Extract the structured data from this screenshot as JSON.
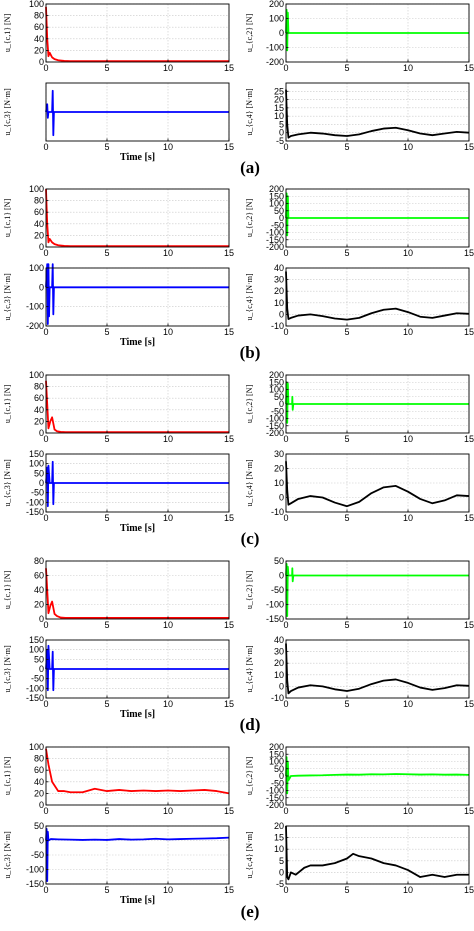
{
  "chart_data": [
    {
      "type": "line",
      "panel": "a",
      "ylabel": "u_{c,1} [N]",
      "xlim": [
        0,
        15
      ],
      "ylim": [
        0,
        100
      ],
      "yticks": [
        0,
        20,
        40,
        60,
        80,
        100
      ],
      "xticks": [
        0,
        5,
        10,
        15
      ],
      "xlabel": "",
      "color": "#ff0000",
      "series": [
        {
          "x": [
            0,
            0.1,
            0.2,
            0.3,
            0.5,
            0.7,
            1,
            1.5,
            2,
            15
          ],
          "y": [
            95,
            40,
            10,
            16,
            8,
            5,
            3,
            2,
            1.5,
            1.5
          ]
        }
      ]
    },
    {
      "type": "line",
      "panel": "a",
      "ylabel": "u_{c,2} [N]",
      "xlim": [
        0,
        15
      ],
      "ylim": [
        -200,
        200
      ],
      "yticks": [
        -200,
        -100,
        0,
        100,
        200
      ],
      "xticks": [
        0,
        5,
        10,
        15
      ],
      "xlabel": "",
      "color": "#00ff00",
      "series": [
        {
          "x": [
            0,
            0.05,
            0.1,
            0.15,
            0.2,
            0.3,
            15
          ],
          "y": [
            0,
            160,
            -120,
            140,
            0,
            0,
            0
          ]
        }
      ]
    },
    {
      "type": "line",
      "panel": "a",
      "ylabel": "u_{c,3} [N·m]",
      "xlim": [
        0,
        15
      ],
      "ylim": [
        -150,
        150
      ],
      "yticks": [],
      "xticks": [
        0,
        5,
        10,
        15
      ],
      "xlabel": "Time [s]",
      "color": "#0000ff",
      "series": [
        {
          "x": [
            0,
            0.1,
            0.15,
            0.2,
            0.5,
            0.55,
            0.6,
            0.65,
            15
          ],
          "y": [
            0,
            40,
            -30,
            0,
            0,
            110,
            -120,
            0,
            0
          ]
        }
      ]
    },
    {
      "type": "line",
      "panel": "a",
      "ylabel": "u_{c,4} [N·m]",
      "xlim": [
        0,
        15
      ],
      "ylim": [
        -5,
        30
      ],
      "yticks": [
        -5,
        0,
        5,
        10,
        15,
        20,
        25
      ],
      "xticks": [
        0,
        5,
        10,
        15
      ],
      "xlabel": "",
      "color": "#000000",
      "series": [
        {
          "x": [
            0,
            0.1,
            0.2,
            0.4,
            1,
            2,
            3,
            4,
            5,
            6,
            7,
            8,
            9,
            10,
            11,
            12,
            13,
            14,
            15
          ],
          "y": [
            26,
            5,
            -3,
            -2,
            -1,
            0,
            -0.5,
            -1.5,
            -2,
            -1,
            1,
            2.5,
            3,
            1.5,
            -0.5,
            -1.5,
            -0.5,
            0.5,
            0
          ]
        }
      ]
    },
    {
      "type": "line",
      "panel": "b",
      "ylabel": "u_{c,1} [N]",
      "xlim": [
        0,
        15
      ],
      "ylim": [
        0,
        100
      ],
      "yticks": [
        0,
        20,
        40,
        60,
        80,
        100
      ],
      "xticks": [
        0,
        5,
        10,
        15
      ],
      "xlabel": "",
      "color": "#ff0000",
      "series": [
        {
          "x": [
            0,
            0.1,
            0.2,
            0.3,
            0.5,
            0.7,
            1,
            1.5,
            2,
            15
          ],
          "y": [
            100,
            40,
            8,
            14,
            8,
            5,
            3,
            2,
            1.5,
            1.5
          ]
        }
      ]
    },
    {
      "type": "line",
      "panel": "b",
      "ylabel": "u_{c,2} [N]",
      "xlim": [
        0,
        15
      ],
      "ylim": [
        -200,
        200
      ],
      "yticks": [
        -200,
        -150,
        -100,
        -50,
        0,
        50,
        100,
        150,
        200
      ],
      "xticks": [
        0,
        5,
        10,
        15
      ],
      "xlabel": "",
      "color": "#00ff00",
      "series": [
        {
          "x": [
            0,
            0.05,
            0.1,
            0.15,
            0.2,
            0.3,
            15
          ],
          "y": [
            0,
            170,
            -120,
            150,
            0,
            0,
            0
          ]
        }
      ]
    },
    {
      "type": "line",
      "panel": "b",
      "ylabel": "u_{c,3} [N·m]",
      "xlim": [
        0,
        15
      ],
      "ylim": [
        -200,
        100
      ],
      "yticks": [
        -200,
        -100,
        0,
        100
      ],
      "xticks": [
        0,
        5,
        10,
        15
      ],
      "xlabel": "Time [s]",
      "color": "#0000ff",
      "series": [
        {
          "x": [
            0,
            0.1,
            0.15,
            0.2,
            0.25,
            0.3,
            0.5,
            0.55,
            0.6,
            0.65,
            15
          ],
          "y": [
            0,
            120,
            -190,
            120,
            -150,
            0,
            0,
            120,
            -140,
            0,
            0
          ]
        }
      ]
    },
    {
      "type": "line",
      "panel": "b",
      "ylabel": "u_{c,4} [N·m]",
      "xlim": [
        0,
        15
      ],
      "ylim": [
        -10,
        40
      ],
      "yticks": [
        -10,
        0,
        10,
        20,
        30,
        40
      ],
      "xticks": [
        0,
        5,
        10,
        15
      ],
      "xlabel": "",
      "color": "#000000",
      "series": [
        {
          "x": [
            0,
            0.1,
            0.2,
            0.4,
            1,
            2,
            3,
            4,
            5,
            6,
            7,
            8,
            9,
            10,
            11,
            12,
            13,
            14,
            15
          ],
          "y": [
            37,
            5,
            -4,
            -3,
            -1,
            0,
            -1.5,
            -3.5,
            -4.5,
            -3,
            1,
            4,
            5,
            2,
            -2,
            -3,
            -1,
            1,
            0.5
          ]
        }
      ]
    },
    {
      "type": "line",
      "panel": "c",
      "ylabel": "u_{c,1} [N]",
      "xlim": [
        0,
        15
      ],
      "ylim": [
        0,
        100
      ],
      "yticks": [
        0,
        20,
        40,
        60,
        80,
        100
      ],
      "xticks": [
        0,
        5,
        10,
        15
      ],
      "xlabel": "",
      "color": "#ff0000",
      "series": [
        {
          "x": [
            0,
            0.1,
            0.2,
            0.35,
            0.5,
            0.7,
            0.9,
            1.2,
            1.6,
            2,
            15
          ],
          "y": [
            90,
            50,
            8,
            20,
            27,
            6,
            3,
            2,
            1.5,
            1.5,
            1.5
          ]
        }
      ]
    },
    {
      "type": "line",
      "panel": "c",
      "ylabel": "u_{c,2} [N]",
      "xlim": [
        0,
        15
      ],
      "ylim": [
        -200,
        200
      ],
      "yticks": [
        -200,
        -150,
        -100,
        -50,
        0,
        50,
        100,
        150,
        200
      ],
      "xticks": [
        0,
        5,
        10,
        15
      ],
      "xlabel": "",
      "color": "#00ff00",
      "series": [
        {
          "x": [
            0,
            0.05,
            0.1,
            0.15,
            0.2,
            0.3,
            0.5,
            0.52,
            0.55,
            0.6,
            15
          ],
          "y": [
            0,
            150,
            -130,
            140,
            0,
            0,
            0,
            50,
            -40,
            0,
            0
          ]
        }
      ]
    },
    {
      "type": "line",
      "panel": "c",
      "ylabel": "u_{c,3} [N·m]",
      "xlim": [
        0,
        15
      ],
      "ylim": [
        -150,
        150
      ],
      "yticks": [
        -150,
        -100,
        -50,
        0,
        50,
        100,
        150
      ],
      "xticks": [
        0,
        5,
        10,
        15
      ],
      "xlabel": "Time [s]",
      "color": "#0000ff",
      "series": [
        {
          "x": [
            0,
            0.1,
            0.15,
            0.2,
            0.3,
            0.5,
            0.55,
            0.6,
            0.65,
            15
          ],
          "y": [
            0,
            80,
            -120,
            90,
            0,
            0,
            110,
            -110,
            0,
            0
          ]
        }
      ]
    },
    {
      "type": "line",
      "panel": "c",
      "ylabel": "u_{c,4} [N·m]",
      "xlim": [
        0,
        15
      ],
      "ylim": [
        -10,
        30
      ],
      "yticks": [
        -10,
        0,
        10,
        20,
        30
      ],
      "xticks": [
        0,
        5,
        10,
        15
      ],
      "xlabel": "",
      "color": "#000000",
      "series": [
        {
          "x": [
            0,
            0.1,
            0.2,
            0.4,
            1,
            2,
            3,
            4,
            5,
            6,
            7,
            8,
            9,
            10,
            11,
            12,
            13,
            14,
            15
          ],
          "y": [
            25,
            5,
            -5,
            -4,
            -1,
            1,
            0,
            -3.5,
            -6,
            -3,
            3,
            7,
            8,
            4,
            -1,
            -4,
            -2,
            1.5,
            1
          ]
        }
      ]
    },
    {
      "type": "line",
      "panel": "d",
      "ylabel": "u_{c,1} [N]",
      "xlim": [
        0,
        15
      ],
      "ylim": [
        0,
        80
      ],
      "yticks": [
        0,
        20,
        40,
        60,
        80
      ],
      "xticks": [
        0,
        5,
        10,
        15
      ],
      "xlabel": "",
      "color": "#ff0000",
      "series": [
        {
          "x": [
            0,
            0.1,
            0.2,
            0.35,
            0.5,
            0.7,
            0.9,
            1.2,
            1.6,
            2,
            15
          ],
          "y": [
            70,
            40,
            8,
            18,
            24,
            7,
            4,
            2,
            1.5,
            1.5,
            1.5
          ]
        }
      ]
    },
    {
      "type": "line",
      "panel": "d",
      "ylabel": "u_{c,2} [N]",
      "xlim": [
        0,
        15
      ],
      "ylim": [
        -150,
        50
      ],
      "yticks": [
        -150,
        -100,
        -50,
        0,
        50
      ],
      "xticks": [
        0,
        5,
        10,
        15
      ],
      "xlabel": "",
      "color": "#00ff00",
      "series": [
        {
          "x": [
            0,
            0.05,
            0.1,
            0.15,
            0.2,
            0.3,
            0.5,
            0.52,
            0.55,
            0.6,
            15
          ],
          "y": [
            0,
            40,
            -140,
            30,
            0,
            0,
            0,
            25,
            -20,
            0,
            0
          ]
        }
      ]
    },
    {
      "type": "line",
      "panel": "d",
      "ylabel": "u_{c,3} [N·m]",
      "xlim": [
        0,
        15
      ],
      "ylim": [
        -150,
        150
      ],
      "yticks": [
        -150,
        -100,
        -50,
        0,
        50,
        100,
        150
      ],
      "xticks": [
        0,
        5,
        10,
        15
      ],
      "xlabel": "Time [s]",
      "color": "#0000ff",
      "series": [
        {
          "x": [
            0,
            0.1,
            0.15,
            0.2,
            0.3,
            0.5,
            0.55,
            0.6,
            0.65,
            15
          ],
          "y": [
            0,
            100,
            -110,
            120,
            0,
            0,
            90,
            -110,
            0,
            0
          ]
        }
      ]
    },
    {
      "type": "line",
      "panel": "d",
      "ylabel": "u_{c,4} [N·m]",
      "xlim": [
        0,
        15
      ],
      "ylim": [
        -10,
        40
      ],
      "yticks": [
        -10,
        0,
        10,
        20,
        30,
        40
      ],
      "xticks": [
        0,
        5,
        10,
        15
      ],
      "xlabel": "",
      "color": "#000000",
      "series": [
        {
          "x": [
            0,
            0.1,
            0.2,
            0.4,
            1,
            2,
            3,
            4,
            5,
            6,
            7,
            8,
            9,
            10,
            11,
            12,
            13,
            14,
            15
          ],
          "y": [
            37,
            5,
            -6,
            -4,
            -1,
            1,
            0,
            -2.5,
            -4,
            -2,
            2,
            5,
            6,
            3,
            -1,
            -3,
            -1.5,
            1,
            0.5
          ]
        }
      ]
    },
    {
      "type": "line",
      "panel": "e",
      "ylabel": "u_{c,1} [N]",
      "xlim": [
        0,
        15
      ],
      "ylim": [
        0,
        100
      ],
      "yticks": [
        0,
        20,
        40,
        60,
        80,
        100
      ],
      "xticks": [
        0,
        5,
        10,
        15
      ],
      "xlabel": "",
      "color": "#ff0000",
      "series": [
        {
          "x": [
            0,
            0.2,
            0.5,
            1,
            1.5,
            2,
            3,
            4,
            5,
            6,
            7,
            8,
            9,
            10,
            11,
            12,
            13,
            14,
            15
          ],
          "y": [
            97,
            70,
            40,
            24,
            24,
            22,
            22,
            28,
            24,
            26,
            24,
            25,
            24,
            25,
            24,
            25,
            26,
            24,
            20
          ]
        }
      ]
    },
    {
      "type": "line",
      "panel": "e",
      "ylabel": "u_{c,2} [N]",
      "xlim": [
        0,
        15
      ],
      "ylim": [
        -200,
        200
      ],
      "yticks": [
        -200,
        -150,
        -100,
        -50,
        0,
        50,
        100,
        150,
        200
      ],
      "xticks": [
        0,
        5,
        10,
        15
      ],
      "xlabel": "",
      "color": "#00ff00",
      "series": [
        {
          "x": [
            0,
            0.05,
            0.1,
            0.15,
            0.2,
            0.4,
            1,
            2,
            3,
            4,
            5,
            6,
            7,
            8,
            9,
            10,
            11,
            12,
            13,
            14,
            15
          ],
          "y": [
            0,
            130,
            -120,
            100,
            -30,
            0,
            2,
            4,
            5,
            8,
            10,
            9,
            12,
            11,
            14,
            12,
            10,
            11,
            9,
            10,
            8
          ]
        }
      ]
    },
    {
      "type": "line",
      "panel": "e",
      "ylabel": "u_{c,3} [N·m]",
      "xlim": [
        0,
        15
      ],
      "ylim": [
        -150,
        50
      ],
      "yticks": [
        -150,
        -100,
        -50,
        0,
        50
      ],
      "xticks": [
        0,
        5,
        10,
        15
      ],
      "xlabel": "Time [s]",
      "color": "#0000ff",
      "series": [
        {
          "x": [
            0,
            0.05,
            0.1,
            0.15,
            0.2,
            0.4,
            1,
            2,
            3,
            4,
            5,
            6,
            7,
            8,
            9,
            10,
            11,
            12,
            13,
            14,
            15
          ],
          "y": [
            0,
            40,
            -140,
            30,
            0,
            5,
            4,
            3,
            2,
            3,
            2,
            5,
            3,
            4,
            6,
            4,
            5,
            6,
            7,
            8,
            10
          ]
        }
      ]
    },
    {
      "type": "line",
      "panel": "e",
      "ylabel": "u_{c,4} [N·m]",
      "xlim": [
        0,
        15
      ],
      "ylim": [
        -5,
        20
      ],
      "yticks": [
        -5,
        0,
        5,
        10,
        15,
        20
      ],
      "xticks": [
        0,
        5,
        10,
        15
      ],
      "xlabel": "",
      "color": "#000000",
      "series": [
        {
          "x": [
            0,
            0.1,
            0.2,
            0.4,
            0.8,
            1.5,
            2,
            3,
            4,
            5,
            5.5,
            6,
            7,
            8,
            9,
            10,
            11,
            12,
            13,
            14,
            15
          ],
          "y": [
            20,
            -2,
            -3,
            0,
            -1,
            2,
            3,
            3,
            4,
            6,
            8,
            7,
            6,
            4,
            3,
            1,
            -2,
            -1,
            -2,
            -1,
            -1
          ]
        }
      ]
    }
  ],
  "panel_labels": [
    "(a)",
    "(b)",
    "(c)",
    "(d)",
    "(e)"
  ]
}
